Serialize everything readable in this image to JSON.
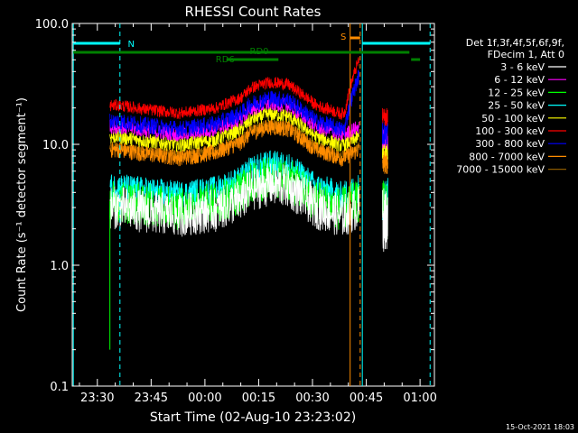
{
  "chart_data": {
    "type": "line",
    "title": "RHESSI Count Rates",
    "xlabel": "Start Time (02-Aug-10 23:23:02)",
    "ylabel": "Count Rate (s⁻¹ detector segment⁻¹)",
    "yscale": "log",
    "ylim": [
      0.1,
      100
    ],
    "y_ticks": [
      "0.1",
      "1.0",
      "10.0",
      "100.0"
    ],
    "x_ticks": [
      "23:30",
      "23:45",
      "00:00",
      "00:15",
      "00:30",
      "00:45",
      "01:00"
    ],
    "x_tick_offsets_min": [
      7,
      22,
      37,
      52,
      67,
      82,
      97
    ],
    "xlim_min": [
      0,
      101
    ],
    "timestamp": "15-Oct-2021 18:03",
    "legend_header": [
      "Det 1f,3f,4f,5f,6f,9f,",
      "FDecim 1, Att 0"
    ],
    "legend_placement": "right",
    "time_profile_min": [
      [
        10.5,
        1.0
      ],
      [
        13,
        1.0
      ],
      [
        20,
        0.93
      ],
      [
        30,
        0.86
      ],
      [
        40,
        0.95
      ],
      [
        47,
        1.15
      ],
      [
        50,
        1.4
      ],
      [
        55,
        1.55
      ],
      [
        60,
        1.5
      ],
      [
        63,
        1.3
      ],
      [
        68,
        1.0
      ],
      [
        72,
        0.92
      ],
      [
        75,
        0.85
      ],
      [
        77,
        0.9
      ],
      [
        80,
        1.0
      ]
    ],
    "gap_min": [
      [
        83.5,
        84.5
      ]
    ],
    "post_gap_profile_min": [
      [
        86.5,
        1.0
      ],
      [
        88,
        1.0
      ]
    ],
    "series": [
      {
        "name": "3 - 6 keV",
        "color": "#ffffff",
        "base": 3.0,
        "noise": 0.18
      },
      {
        "name": "6 - 12 keV",
        "color": "#ff00ff",
        "base": 14.0,
        "noise": 0.06
      },
      {
        "name": "12 - 25 keV",
        "color": "#00ff00",
        "base": 3.4,
        "noise": 0.18
      },
      {
        "name": "25 - 50 keV",
        "color": "#00ffff",
        "base": 4.4,
        "noise": 0.12
      },
      {
        "name": "50 - 100 keV",
        "color": "#ffff00",
        "base": 11.5,
        "noise": 0.06
      },
      {
        "name": "100 - 300 keV",
        "color": "#ff0000",
        "base": 21.0,
        "noise": 0.05
      },
      {
        "name": "300 - 800 keV",
        "color": "#0000ff",
        "base": 15.5,
        "noise": 0.07
      },
      {
        "name": "800 - 7000 keV",
        "color": "#ff8c00",
        "base": 9.0,
        "noise": 0.07
      },
      {
        "name": "7000 - 15000 keV",
        "color": "#8b5a00",
        "base": 9.5,
        "noise": 0.04
      }
    ],
    "annotations": {
      "night": "N",
      "saa": "S",
      "rd0": "RD0",
      "rd6": "RD6"
    },
    "colors": {
      "night": "#00ffff",
      "saa": "#ff8c00",
      "rd": "#008000"
    }
  }
}
